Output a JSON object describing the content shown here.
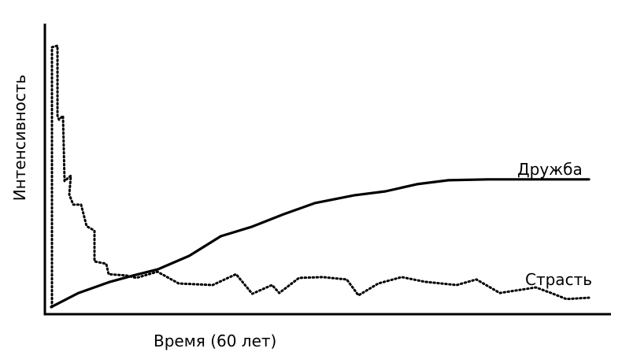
{
  "chart_data": {
    "type": "line",
    "title": "",
    "xlabel": "Время (60 лет)",
    "ylabel": "Интенсивность",
    "xlim": [
      0,
      60
    ],
    "ylim": [
      0,
      100
    ],
    "grid": false,
    "colors": {
      "line": "#000000",
      "axis": "#000000"
    },
    "series": [
      {
        "name": "Дружба",
        "style": "solid",
        "x": [
          0.26,
          3.3,
          6.8,
          9.4,
          12.1,
          15.6,
          19.1,
          22.6,
          26.1,
          29.6,
          33.9,
          37.4,
          40.9,
          44.4,
          48.8,
          60
        ],
        "y": [
          1.5,
          6.8,
          11.0,
          13.4,
          15.7,
          20.8,
          28.2,
          31.8,
          36.5,
          40.7,
          43.6,
          45.1,
          47.8,
          49.3,
          49.6,
          49.6
        ]
      },
      {
        "name": "Страсть",
        "style": "dotted",
        "x": [
          0.35,
          0.35,
          0.96,
          0.96,
          1.14,
          1.57,
          1.75,
          2.45,
          2.27,
          2.71,
          3.59,
          4.2,
          5.07,
          5.07,
          6.38,
          6.65,
          8.57,
          9.71,
          12.07,
          14.43,
          18.19,
          20.8,
          22.6,
          24.8,
          25.6,
          27.8,
          30.4,
          33.1,
          34.4,
          36.6,
          39.2,
          41.8,
          45.3,
          47.5,
          50.1,
          54.1,
          55.8,
          57.5,
          60
        ],
        "y": [
          1.5,
          99.4,
          100,
          73.6,
          72.1,
          73.6,
          49.0,
          51.0,
          43.9,
          40.1,
          40.1,
          32.0,
          30.3,
          18.7,
          17.8,
          13.9,
          13.4,
          12.5,
          14.8,
          10.4,
          9.8,
          13.9,
          6.5,
          9.8,
          6.8,
          12.5,
          12.8,
          11.9,
          5.9,
          10.4,
          12.8,
          11.0,
          9.8,
          11.9,
          6.8,
          8.9,
          6.8,
          4.5,
          5.0
        ]
      }
    ]
  }
}
